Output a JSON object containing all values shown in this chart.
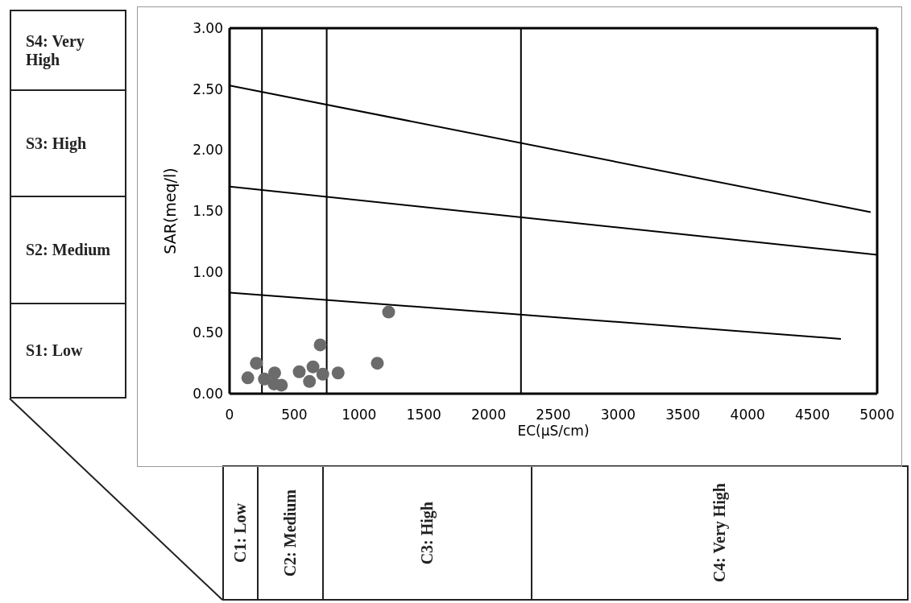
{
  "chart_data": {
    "type": "scatter",
    "xlabel": "EC(μS/cm)",
    "ylabel": "SAR(meq/l)",
    "xlim": [
      0,
      5000
    ],
    "xticks": [
      0,
      500,
      1000,
      1500,
      2000,
      2500,
      3000,
      3500,
      4000,
      4500,
      5000
    ],
    "ylim": [
      0,
      3
    ],
    "yticks": [
      {
        "value": 0,
        "label": "0.00"
      },
      {
        "value": 0.5,
        "label": "0.50"
      },
      {
        "value": 1,
        "label": "1.00"
      },
      {
        "value": 1.5,
        "label": "1.50"
      },
      {
        "value": 2,
        "label": "2.00"
      },
      {
        "value": 2.5,
        "label": "2.50"
      },
      {
        "value": 3,
        "label": "3.00"
      }
    ],
    "series": [
      {
        "color": "#6b6b6b",
        "marker": "circle",
        "x": [
          141,
          207,
          269,
          348,
          344,
          400,
          538,
          644,
          617,
          700,
          720,
          838,
          1141,
          1228
        ],
        "values": [
          0.13,
          0.25,
          0.12,
          0.17,
          0.08,
          0.07,
          0.18,
          0.22,
          0.1,
          0.4,
          0.16,
          0.17,
          0.25,
          0.67
        ]
      },
      {
        "type": "line",
        "color": "#000000",
        "marker": "none",
        "x": [
          0,
          4950
        ],
        "values": [
          2.53,
          1.49
        ]
      },
      {
        "type": "line",
        "color": "#000000",
        "marker": "none",
        "x": [
          0,
          5000
        ],
        "values": [
          1.7,
          1.14
        ]
      },
      {
        "type": "line",
        "color": "#000000",
        "marker": "none",
        "x": [
          0,
          4720
        ],
        "values": [
          0.83,
          0.45
        ]
      }
    ],
    "ref_lines": [
      {
        "axis": "x",
        "value": 250,
        "color": "#000000"
      },
      {
        "axis": "x",
        "value": 750,
        "color": "#000000"
      },
      {
        "axis": "x",
        "value": 2250,
        "color": "#000000"
      }
    ],
    "annotations": [
      "S4: Very High",
      "S3: High",
      "S2: Medium",
      "S1: Low",
      "C1: Low",
      "C2: Medium",
      "C3: High",
      "C4: Very High"
    ]
  }
}
